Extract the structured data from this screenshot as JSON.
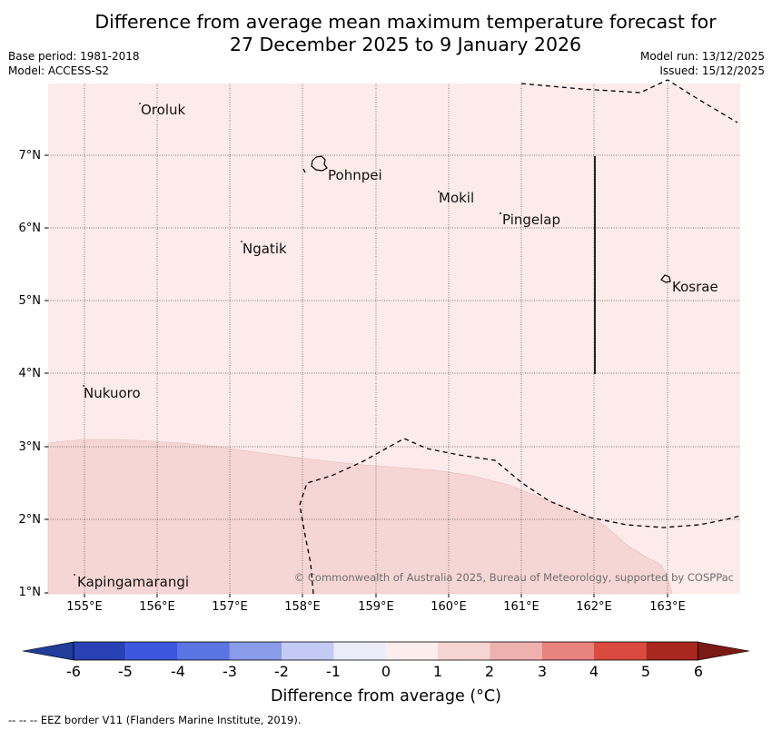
{
  "title_line1": "Difference from average mean maximum temperature forecast for",
  "title_line2": "27 December 2025 to 9 January 2026",
  "base_period": "Base period: 1981-2018",
  "model": "Model: ACCESS-S2",
  "model_run": "Model run: 13/12/2025",
  "issued": "Issued: 15/12/2025",
  "lat_labels": [
    "7°N",
    "6°N",
    "5°N",
    "4°N",
    "3°N",
    "2°N",
    "1°N"
  ],
  "lon_labels": [
    "155°E",
    "156°E",
    "157°E",
    "158°E",
    "159°E",
    "160°E",
    "161°E",
    "162°E",
    "163°E"
  ],
  "places": [
    "Oroluk",
    "Pohnpei",
    "Mokil",
    "Pingelap",
    "Ngatik",
    "Kosrae",
    "Nukuoro",
    "Kapingamarangi"
  ],
  "credit": "© Commonwealth of Australia 2025, Bureau of Meteorology, supported by COSPPac",
  "colorbar": {
    "ticks": [
      "-6",
      "-5",
      "-4",
      "-3",
      "-2",
      "-1",
      "0",
      "1",
      "2",
      "3",
      "4",
      "5",
      "6"
    ],
    "title": "Difference from average (°C)",
    "colors": [
      "#1f3d99",
      "#2941b5",
      "#3b57db",
      "#5b74e3",
      "#8a9bea",
      "#c3cbf4",
      "#ececfb",
      "#fdeeed",
      "#f6d4d2",
      "#efb1ae",
      "#e8837e",
      "#db4a3f",
      "#a8271f",
      "#7a1a14"
    ]
  },
  "field": {
    "main_color": "#fcebea",
    "warm_color": "#f6d6d4"
  },
  "legend_note": "--  --  -- EEZ border V11 (Flanders Marine Institute, 2019)."
}
